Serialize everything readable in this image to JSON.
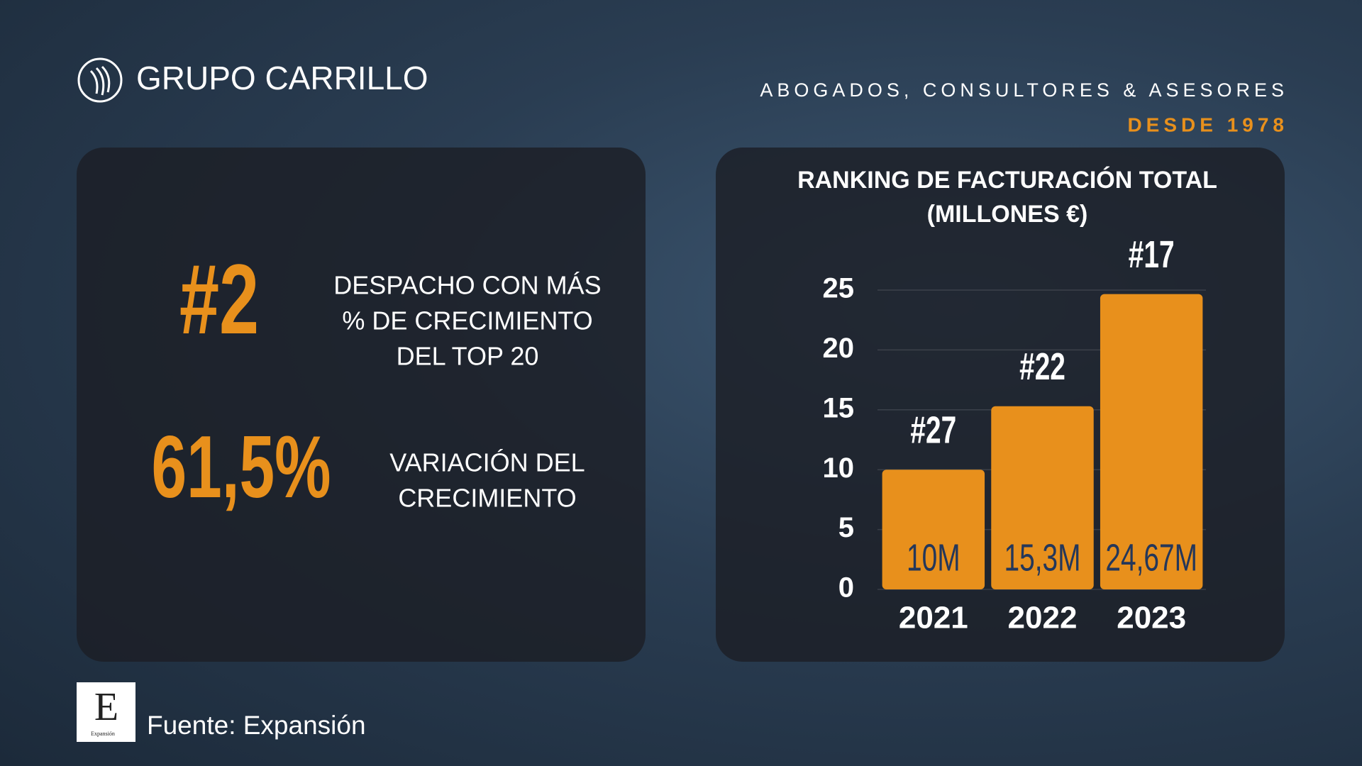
{
  "header": {
    "brand": "GRUPO CARRILLO",
    "tagline": "ABOGADOS, CONSULTORES & ASESORES",
    "since": "DESDE 1978"
  },
  "stats": [
    {
      "value": "#2",
      "lines": [
        "DESPACHO CON MÁS",
        "% DE CRECIMIENTO",
        "DEL TOP 20"
      ]
    },
    {
      "value": "61,5%",
      "lines": [
        "VARIACIÓN DEL",
        "CRECIMIENTO"
      ]
    }
  ],
  "chart_data": {
    "type": "bar",
    "title": "RANKING DE FACTURACIÓN TOTAL (MILLONES €)",
    "categories": [
      "2021",
      "2022",
      "2023"
    ],
    "values": [
      10,
      15.3,
      24.67
    ],
    "value_labels": [
      "10M",
      "15,3M",
      "24,67M"
    ],
    "annotations": [
      "#27",
      "#22",
      "#17"
    ],
    "color": "#e8901c",
    "ylim": [
      0,
      25
    ],
    "yticks": [
      0,
      5,
      10,
      15,
      20,
      25
    ],
    "grid": true
  },
  "footer": {
    "logo_letter": "E",
    "logo_caption": "Expansión",
    "source": "Fuente: Expansión"
  }
}
